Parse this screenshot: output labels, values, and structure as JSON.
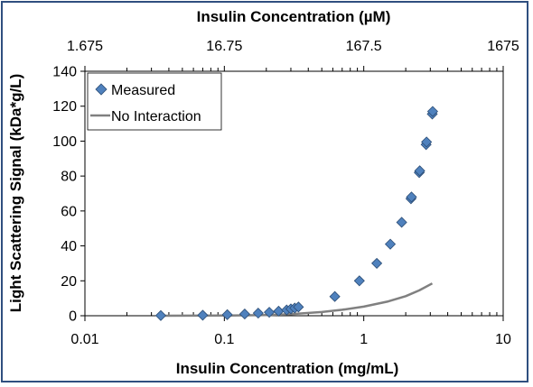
{
  "chart_data": {
    "type": "scatter",
    "x_scale": "log",
    "xlim": [
      0.01,
      10
    ],
    "ylim": [
      0,
      140
    ],
    "xlabel": "Insulin Concentration (mg/mL)",
    "ylabel": "Light Scattering Signal (kDa*g/L)",
    "x2label": "Insulin Concentration (µM)",
    "x_ticks": [
      0.01,
      0.1,
      1,
      10
    ],
    "x_tick_labels": [
      "0.01",
      "0.1",
      "1",
      "10"
    ],
    "x2_ticks": [
      0.01,
      0.1,
      1,
      10
    ],
    "x2_tick_labels": [
      "1.675",
      "16.75",
      "167.5",
      "1675"
    ],
    "y_ticks": [
      0,
      20,
      40,
      60,
      80,
      100,
      120,
      140
    ],
    "y_tick_labels": [
      "0",
      "20",
      "40",
      "60",
      "80",
      "100",
      "120",
      "140"
    ],
    "legend_position": "top-left",
    "series": [
      {
        "name": "Measured",
        "marker": "diamond",
        "color": "#4f81bd",
        "points": [
          [
            0.035,
            0.1
          ],
          [
            0.07,
            0.3
          ],
          [
            0.105,
            0.6
          ],
          [
            0.14,
            1.0
          ],
          [
            0.175,
            1.5
          ],
          [
            0.21,
            2.0
          ],
          [
            0.245,
            2.6
          ],
          [
            0.28,
            3.3
          ],
          [
            0.3,
            3.9
          ],
          [
            0.32,
            4.4
          ],
          [
            0.34,
            5.0
          ],
          [
            0.62,
            11.0
          ],
          [
            0.93,
            20.0
          ],
          [
            1.24,
            30.0
          ],
          [
            1.55,
            41.0
          ],
          [
            1.87,
            53.5
          ],
          [
            2.18,
            67.0
          ],
          [
            2.2,
            68.0
          ],
          [
            2.5,
            82.0
          ],
          [
            2.52,
            83.0
          ],
          [
            2.8,
            98.0
          ],
          [
            2.82,
            99.5
          ],
          [
            3.1,
            115.5
          ],
          [
            3.12,
            117.0
          ]
        ]
      },
      {
        "name": "No Interaction",
        "line": true,
        "color": "#808080",
        "points": [
          [
            0.035,
            0.0
          ],
          [
            0.1,
            0.1
          ],
          [
            0.2,
            0.4
          ],
          [
            0.3,
            0.9
          ],
          [
            0.5,
            2.1
          ],
          [
            0.7,
            3.4
          ],
          [
            1.0,
            5.2
          ],
          [
            1.5,
            8.2
          ],
          [
            2.0,
            11.2
          ],
          [
            2.5,
            14.5
          ],
          [
            3.1,
            18.5
          ]
        ]
      }
    ]
  }
}
